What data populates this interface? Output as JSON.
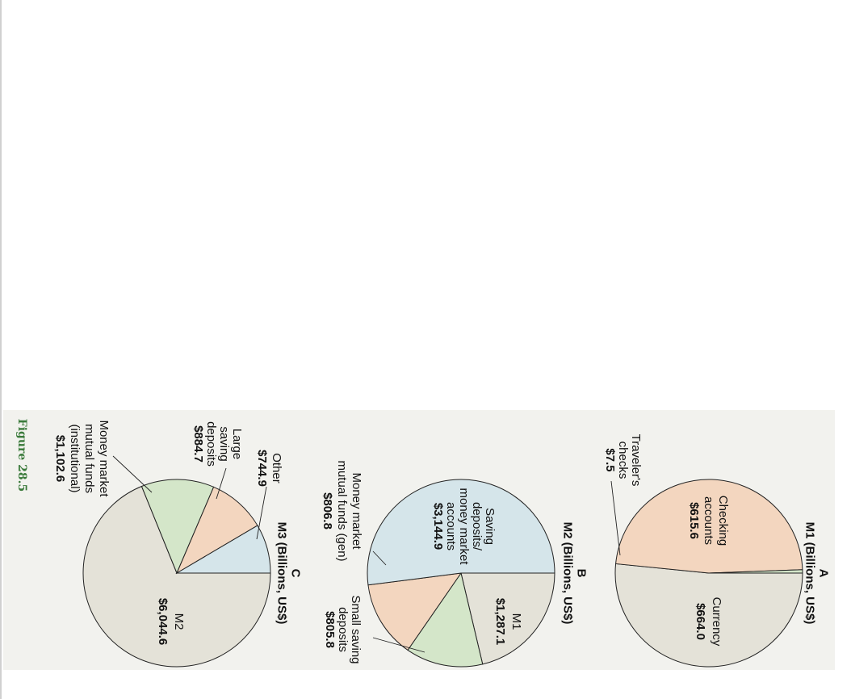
{
  "figure": {
    "label": "Figure 28.5",
    "colors": {
      "panel": "#f2f2ee",
      "beige": "#e4e2d8",
      "peach": "#f3d6bf",
      "green": "#d4e6c9",
      "blue": "#d5e5ea",
      "figure_label": "#3a7a3a"
    }
  },
  "chart_data": [
    {
      "type": "pie",
      "letter": "A",
      "title": "M1 (Billions, US$)",
      "slices": [
        {
          "name": "Currency",
          "value": 664.0,
          "value_label": "$664.0",
          "color": "#e4e2d8"
        },
        {
          "name": "Checking accounts",
          "value": 615.6,
          "value_label": "$615.6",
          "color": "#f3d6bf"
        },
        {
          "name": "Traveler's checks",
          "value": 7.5,
          "value_label": "$7.5",
          "color": "#d4e6c9"
        }
      ],
      "label_text": {
        "currency": [
          "Currency"
        ],
        "checking": [
          "Checking",
          "accounts"
        ],
        "travelers": [
          "Traveler's",
          "checks"
        ]
      }
    },
    {
      "type": "pie",
      "letter": "B",
      "title": "M2 (Billions, US$)",
      "slices": [
        {
          "name": "M1",
          "value": 1287.1,
          "value_label": "$1,287.1",
          "color": "#e4e2d8"
        },
        {
          "name": "Small saving deposits",
          "value": 805.8,
          "value_label": "$805.8",
          "color": "#d4e6c9"
        },
        {
          "name": "Money market mutual funds (gen)",
          "value": 806.8,
          "value_label": "$806.8",
          "color": "#f3d6bf"
        },
        {
          "name": "Saving deposits/ money market accounts",
          "value": 3144.9,
          "value_label": "$3,144.9",
          "color": "#d5e5ea"
        }
      ],
      "label_text": {
        "m1": [
          "M1"
        ],
        "small": [
          "Small saving",
          "deposits"
        ],
        "mmmf": [
          "Money market",
          "mutual funds (gen)"
        ],
        "saving": [
          "Saving",
          "deposits/",
          "money market",
          "accounts"
        ]
      }
    },
    {
      "type": "pie",
      "letter": "C",
      "title": "M3 (Billions, US$)",
      "slices": [
        {
          "name": "M2",
          "value": 6044.6,
          "value_label": "$6,044.6",
          "color": "#e4e2d8"
        },
        {
          "name": "Money market mutual funds (institutional)",
          "value": 1102.6,
          "value_label": "$1,102.6",
          "color": "#d4e6c9"
        },
        {
          "name": "Large saving deposits",
          "value": 884.7,
          "value_label": "$884.7",
          "color": "#f3d6bf"
        },
        {
          "name": "Other",
          "value": 744.9,
          "value_label": "$744.9",
          "color": "#d5e5ea"
        }
      ],
      "label_text": {
        "m2": [
          "M2"
        ],
        "mmmf_inst": [
          "Money market",
          "mutual funds",
          "(institutional)"
        ],
        "large": [
          "Large",
          "saving",
          "deposits"
        ],
        "other": [
          "Other"
        ]
      }
    }
  ]
}
